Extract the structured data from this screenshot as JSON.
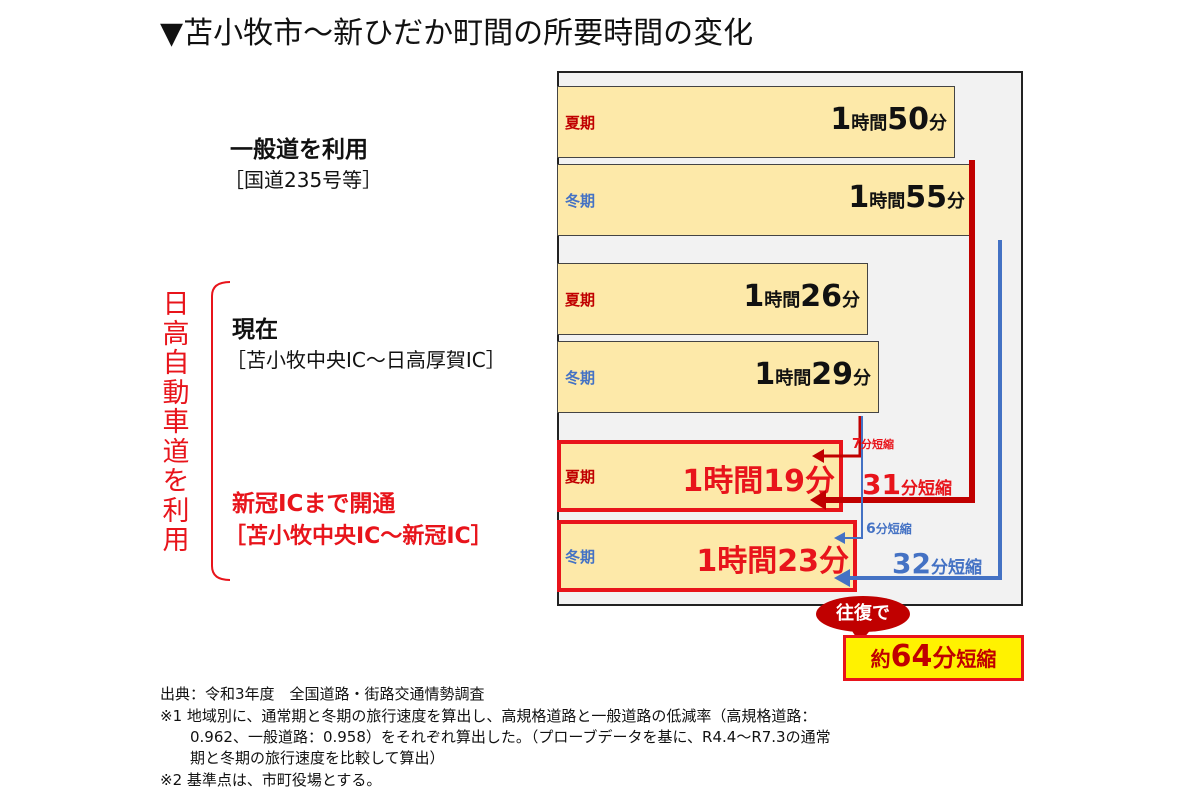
{
  "title": "▼苫小牧市～新ひだか町間の所要時間の変化",
  "groups": {
    "ordinary": {
      "name": "一般道を利用",
      "sub": "［国道235号等］"
    },
    "current": {
      "name": "現在",
      "sub": "［苫小牧中央IC～日高厚賀IC］"
    },
    "opened": {
      "name": "新冠ICまで開通",
      "sub": "［苫小牧中央IC～新冠IC］"
    },
    "side_label": "日高自動車道を利用"
  },
  "chart_data": {
    "type": "bar",
    "orientation": "horizontal",
    "unit": "分",
    "bars": [
      {
        "group": "一般道を利用",
        "season": "夏期",
        "minutes": 110,
        "h": "1",
        "m": "50"
      },
      {
        "group": "一般道を利用",
        "season": "冬期",
        "minutes": 115,
        "h": "1",
        "m": "55"
      },
      {
        "group": "現在",
        "season": "夏期",
        "minutes": 86,
        "h": "1",
        "m": "26"
      },
      {
        "group": "現在",
        "season": "冬期",
        "minutes": 89,
        "h": "1",
        "m": "29"
      },
      {
        "group": "新冠ICまで開通",
        "season": "夏期",
        "minutes": 79,
        "text": "1時間19分"
      },
      {
        "group": "新冠ICまで開通",
        "season": "冬期",
        "minutes": 83,
        "text": "1時間23分"
      }
    ],
    "labels": {
      "hour": "時間",
      "minute": "分"
    },
    "reductions": [
      {
        "num": "7",
        "suffix": "分短縮",
        "season": "夏期",
        "vs": "現在"
      },
      {
        "num": "31",
        "suffix": "分短縮",
        "season": "夏期",
        "vs": "一般道を利用"
      },
      {
        "num": "6",
        "suffix": "分短縮",
        "season": "冬期",
        "vs": "現在"
      },
      {
        "num": "32",
        "suffix": "分短縮",
        "season": "冬期",
        "vs": "一般道を利用"
      }
    ],
    "round_trip": {
      "bubble": "往復で",
      "prefix": "約",
      "num": "64",
      "unit": "分",
      "suffix": "短縮"
    },
    "colors": {
      "bar_fill": "#fde9a9",
      "summer": "#c00000",
      "winter": "#4472c4",
      "highlight": "#e8141b"
    }
  },
  "notes": [
    "出典：令和3年度　全国道路・街路交通情勢調査",
    "※1 地域別に、通常期と冬期の旅行速度を算出し、高規格道路と一般道路の低減率（高規格道路：",
    "0.962、一般道路：0.958）をそれぞれ算出した。（プローブデータを基に、R4.4～R7.3の通常",
    "期と冬期の旅行速度を比較して算出）",
    "※2 基準点は、市町役場とする。"
  ]
}
